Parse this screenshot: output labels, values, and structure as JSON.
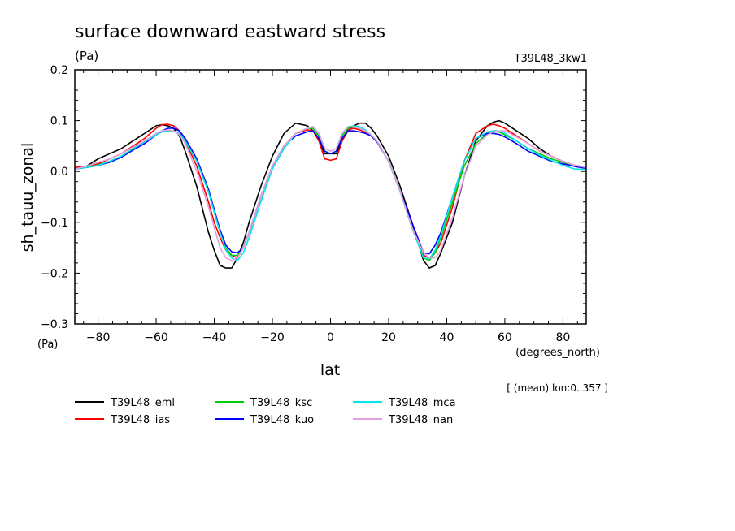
{
  "chart_data": {
    "type": "line",
    "title": "surface downward eastward stress",
    "units_top": "(Pa)",
    "units_bottom": "(Pa)",
    "experiment_label": "T39L48_3kw1",
    "xlabel": "lat",
    "x_units": "(degrees_north)",
    "ylabel": "sh_tauu_zonal",
    "note": "[ (mean) lon:0..357 ]",
    "xlim": [
      -88,
      88
    ],
    "ylim": [
      -0.3,
      0.2
    ],
    "x_ticks": [
      "-80",
      "-60",
      "-40",
      "-20",
      "0",
      "20",
      "40",
      "60",
      "80"
    ],
    "y_ticks": [
      "0.2",
      "0.1",
      "0.0",
      "-0.1",
      "-0.2",
      "-0.3"
    ],
    "legend_position": "bottom",
    "series": [
      {
        "name": "T39L48_eml",
        "color": "#000000",
        "x": [
          -88,
          -84,
          -80,
          -76,
          -72,
          -68,
          -64,
          -60,
          -58,
          -56,
          -54,
          -52,
          -50,
          -46,
          -42,
          -40,
          -38,
          -36,
          -34,
          -32,
          -30,
          -28,
          -24,
          -20,
          -16,
          -12,
          -8,
          -6,
          -4,
          -2,
          0,
          2,
          4,
          6,
          8,
          10,
          12,
          14,
          16,
          20,
          24,
          28,
          32,
          34,
          36,
          38,
          42,
          46,
          50,
          54,
          56,
          58,
          60,
          64,
          68,
          72,
          76,
          80,
          84,
          88
        ],
        "y": [
          0.005,
          0.01,
          0.025,
          0.035,
          0.045,
          0.06,
          0.075,
          0.09,
          0.092,
          0.09,
          0.085,
          0.07,
          0.04,
          -0.03,
          -0.12,
          -0.155,
          -0.185,
          -0.19,
          -0.19,
          -0.17,
          -0.14,
          -0.1,
          -0.03,
          0.03,
          0.075,
          0.095,
          0.09,
          0.08,
          0.06,
          0.035,
          0.035,
          0.035,
          0.06,
          0.08,
          0.09,
          0.095,
          0.095,
          0.085,
          0.07,
          0.03,
          -0.03,
          -0.1,
          -0.175,
          -0.19,
          -0.185,
          -0.16,
          -0.1,
          -0.01,
          0.06,
          0.09,
          0.097,
          0.1,
          0.095,
          0.08,
          0.065,
          0.045,
          0.03,
          0.02,
          0.012,
          0.008
        ]
      },
      {
        "name": "T39L48_ias",
        "color": "#ff0000",
        "x": [
          -88,
          -84,
          -80,
          -76,
          -72,
          -68,
          -64,
          -60,
          -58,
          -56,
          -54,
          -52,
          -50,
          -46,
          -42,
          -40,
          -38,
          -36,
          -34,
          -32,
          -30,
          -28,
          -24,
          -20,
          -16,
          -12,
          -8,
          -6,
          -4,
          -2,
          0,
          2,
          4,
          6,
          8,
          10,
          12,
          14,
          16,
          20,
          24,
          28,
          32,
          34,
          36,
          38,
          42,
          46,
          50,
          54,
          56,
          58,
          60,
          64,
          68,
          72,
          76,
          80,
          84,
          88
        ],
        "y": [
          0.008,
          0.01,
          0.015,
          0.025,
          0.035,
          0.05,
          0.065,
          0.085,
          0.092,
          0.093,
          0.09,
          0.08,
          0.06,
          0.01,
          -0.06,
          -0.1,
          -0.13,
          -0.155,
          -0.165,
          -0.17,
          -0.15,
          -0.12,
          -0.05,
          0.01,
          0.05,
          0.075,
          0.082,
          0.08,
          0.06,
          0.025,
          0.022,
          0.025,
          0.06,
          0.082,
          0.085,
          0.082,
          0.077,
          0.07,
          0.06,
          0.02,
          -0.04,
          -0.11,
          -0.165,
          -0.17,
          -0.16,
          -0.14,
          -0.07,
          0.02,
          0.075,
          0.09,
          0.093,
          0.09,
          0.085,
          0.07,
          0.055,
          0.04,
          0.03,
          0.02,
          0.012,
          0.008
        ]
      },
      {
        "name": "T39L48_ksc",
        "color": "#00cc00",
        "x": [
          -88,
          -84,
          -80,
          -76,
          -72,
          -68,
          -64,
          -60,
          -58,
          -56,
          -54,
          -52,
          -50,
          -46,
          -42,
          -40,
          -38,
          -36,
          -34,
          -32,
          -30,
          -28,
          -24,
          -20,
          -16,
          -12,
          -8,
          -6,
          -4,
          -2,
          0,
          2,
          4,
          6,
          8,
          10,
          12,
          14,
          16,
          20,
          24,
          28,
          32,
          34,
          36,
          38,
          42,
          46,
          50,
          54,
          56,
          58,
          60,
          64,
          68,
          72,
          76,
          80,
          84,
          88
        ],
        "y": [
          0.005,
          0.008,
          0.013,
          0.02,
          0.03,
          0.045,
          0.058,
          0.072,
          0.078,
          0.08,
          0.08,
          0.075,
          0.06,
          0.02,
          -0.04,
          -0.08,
          -0.12,
          -0.15,
          -0.165,
          -0.165,
          -0.15,
          -0.12,
          -0.05,
          0.01,
          0.05,
          0.075,
          0.085,
          0.085,
          0.07,
          0.04,
          0.035,
          0.04,
          0.07,
          0.085,
          0.088,
          0.085,
          0.08,
          0.07,
          0.06,
          0.02,
          -0.04,
          -0.11,
          -0.17,
          -0.175,
          -0.16,
          -0.13,
          -0.06,
          0.01,
          0.055,
          0.075,
          0.078,
          0.078,
          0.072,
          0.06,
          0.045,
          0.035,
          0.025,
          0.018,
          0.01,
          0.008
        ]
      },
      {
        "name": "T39L48_kuo",
        "color": "#0000ff",
        "x": [
          -88,
          -84,
          -80,
          -76,
          -72,
          -68,
          -64,
          -60,
          -58,
          -56,
          -54,
          -52,
          -50,
          -46,
          -42,
          -40,
          -38,
          -36,
          -34,
          -32,
          -30,
          -28,
          -24,
          -20,
          -16,
          -12,
          -8,
          -6,
          -4,
          -2,
          0,
          2,
          4,
          6,
          8,
          10,
          12,
          14,
          16,
          20,
          24,
          28,
          32,
          34,
          36,
          38,
          42,
          46,
          50,
          54,
          56,
          58,
          60,
          64,
          68,
          72,
          76,
          80,
          84,
          88
        ],
        "y": [
          0.005,
          0.008,
          0.012,
          0.018,
          0.028,
          0.042,
          0.055,
          0.072,
          0.08,
          0.085,
          0.085,
          0.08,
          0.065,
          0.025,
          -0.035,
          -0.075,
          -0.115,
          -0.145,
          -0.158,
          -0.16,
          -0.15,
          -0.12,
          -0.05,
          0.01,
          0.05,
          0.07,
          0.078,
          0.08,
          0.065,
          0.04,
          0.035,
          0.04,
          0.065,
          0.08,
          0.08,
          0.078,
          0.075,
          0.07,
          0.058,
          0.02,
          -0.04,
          -0.1,
          -0.16,
          -0.162,
          -0.145,
          -0.12,
          -0.05,
          0.02,
          0.065,
          0.075,
          0.075,
          0.073,
          0.068,
          0.055,
          0.04,
          0.03,
          0.02,
          0.015,
          0.01,
          0.006
        ]
      },
      {
        "name": "T39L48_mca",
        "color": "#00e5e5",
        "x": [
          -88,
          -84,
          -80,
          -76,
          -72,
          -68,
          -64,
          -60,
          -58,
          -56,
          -54,
          -52,
          -50,
          -46,
          -42,
          -40,
          -38,
          -36,
          -34,
          -32,
          -30,
          -28,
          -24,
          -20,
          -16,
          -12,
          -8,
          -6,
          -4,
          -2,
          0,
          2,
          4,
          6,
          8,
          10,
          12,
          14,
          16,
          20,
          24,
          28,
          32,
          34,
          36,
          38,
          42,
          46,
          50,
          54,
          56,
          58,
          60,
          64,
          68,
          72,
          76,
          80,
          84,
          88
        ],
        "y": [
          0.005,
          0.008,
          0.012,
          0.02,
          0.03,
          0.045,
          0.058,
          0.072,
          0.078,
          0.08,
          0.08,
          0.075,
          0.06,
          0.02,
          -0.04,
          -0.08,
          -0.12,
          -0.155,
          -0.17,
          -0.175,
          -0.16,
          -0.13,
          -0.06,
          0.005,
          0.045,
          0.075,
          0.085,
          0.088,
          0.075,
          0.045,
          0.04,
          0.045,
          0.075,
          0.088,
          0.09,
          0.088,
          0.082,
          0.072,
          0.06,
          0.02,
          -0.04,
          -0.11,
          -0.17,
          -0.172,
          -0.155,
          -0.125,
          -0.05,
          0.02,
          0.065,
          0.078,
          0.08,
          0.08,
          0.075,
          0.06,
          0.045,
          0.032,
          0.022,
          0.012,
          0.005,
          0.004
        ]
      },
      {
        "name": "T39L48_nan",
        "color": "#e5a0e5",
        "x": [
          -88,
          -84,
          -80,
          -76,
          -72,
          -68,
          -64,
          -60,
          -58,
          -56,
          -54,
          -52,
          -50,
          -46,
          -42,
          -40,
          -38,
          -36,
          -34,
          -32,
          -30,
          -28,
          -24,
          -20,
          -16,
          -12,
          -8,
          -6,
          -4,
          -2,
          0,
          2,
          4,
          6,
          8,
          10,
          12,
          14,
          16,
          20,
          24,
          28,
          32,
          34,
          36,
          38,
          42,
          46,
          50,
          54,
          56,
          58,
          60,
          64,
          68,
          72,
          76,
          80,
          84,
          88
        ],
        "y": [
          0.005,
          0.01,
          0.018,
          0.025,
          0.035,
          0.048,
          0.06,
          0.075,
          0.08,
          0.082,
          0.08,
          0.072,
          0.055,
          0.0,
          -0.07,
          -0.11,
          -0.15,
          -0.17,
          -0.175,
          -0.17,
          -0.15,
          -0.12,
          -0.05,
          0.01,
          0.05,
          0.075,
          0.085,
          0.088,
          0.075,
          0.045,
          0.04,
          0.045,
          0.075,
          0.088,
          0.088,
          0.085,
          0.08,
          0.072,
          0.06,
          0.02,
          -0.04,
          -0.11,
          -0.16,
          -0.17,
          -0.17,
          -0.155,
          -0.09,
          -0.01,
          0.05,
          0.072,
          0.078,
          0.08,
          0.08,
          0.068,
          0.055,
          0.04,
          0.03,
          0.02,
          0.012,
          0.008
        ]
      }
    ]
  }
}
